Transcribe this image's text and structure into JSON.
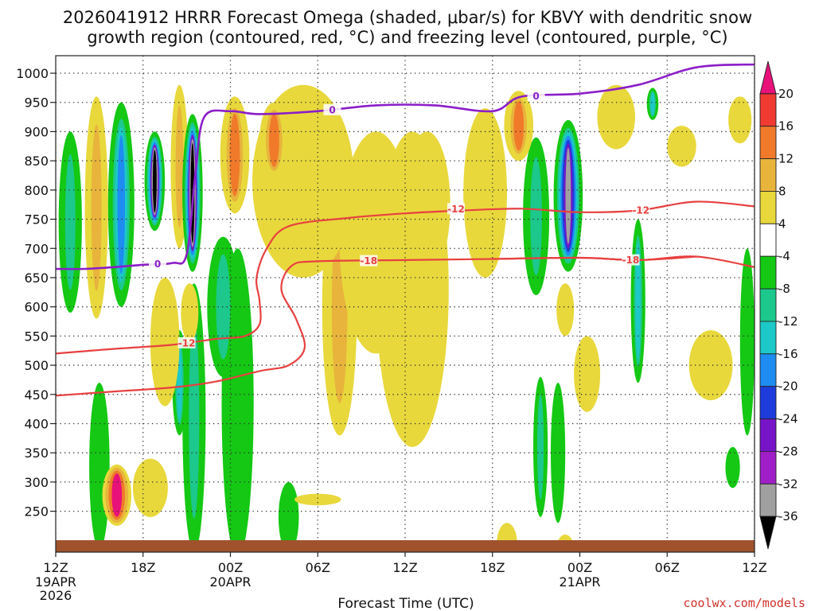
{
  "chart_data": {
    "type": "heatmap",
    "title_line1": "2026041912 HRRR Forecast Omega (shaded, μbar/s) for KBVY with dendritic snow",
    "title_line2": "growth region (contoured, red, °C) and freezing level (contoured, purple, °C)",
    "xlabel": "Forecast Time (UTC)",
    "credit": "coolwx.com/models",
    "y_axis": {
      "unit": "hPa",
      "range": [
        1030,
        180
      ],
      "ticks": [
        250,
        300,
        350,
        400,
        450,
        500,
        550,
        600,
        650,
        700,
        750,
        800,
        850,
        900,
        950,
        1000
      ],
      "tick_labels": [
        "250",
        "300",
        "350",
        "400",
        "450",
        "500",
        "550",
        "600",
        "650",
        "700",
        "750",
        "800",
        "850",
        "900",
        "950",
        "1000"
      ]
    },
    "x_axis": {
      "unit": "hours from 2026041912",
      "range": [
        0,
        48
      ],
      "ticks": [
        0,
        6,
        12,
        18,
        24,
        30,
        36,
        42,
        48
      ],
      "tick_labels": [
        "12Z",
        "18Z",
        "00Z",
        "06Z",
        "12Z",
        "18Z",
        "00Z",
        "06Z",
        "12Z"
      ],
      "date_labels": [
        {
          "hour": 0,
          "lines": [
            "19APR",
            "2026"
          ]
        },
        {
          "hour": 12,
          "lines": [
            "20APR"
          ]
        },
        {
          "hour": 36,
          "lines": [
            "21APR"
          ]
        }
      ]
    },
    "colorbar": {
      "tick_labels": [
        "20",
        "16",
        "12",
        "8",
        "4",
        "-4",
        "-8",
        "-12",
        "-16",
        "-20",
        "-24",
        "-28",
        "-32",
        "-36"
      ],
      "bins": [
        {
          "range": ">20",
          "color": "#e8117a"
        },
        {
          "range": "16..20",
          "color": "#f03a32"
        },
        {
          "range": "12..16",
          "color": "#f07a2a"
        },
        {
          "range": "8..12",
          "color": "#e8b43c"
        },
        {
          "range": "4..8",
          "color": "#e8d83c"
        },
        {
          "range": "-4..4",
          "color": "#ffffff"
        },
        {
          "range": "-8..-4",
          "color": "#14c814"
        },
        {
          "range": "-12..-8",
          "color": "#1cc88c"
        },
        {
          "range": "-16..-12",
          "color": "#1cc8c8"
        },
        {
          "range": "-20..-16",
          "color": "#1e8cf0"
        },
        {
          "range": "-24..-20",
          "color": "#1e3cdc"
        },
        {
          "range": "-28..-24",
          "color": "#7814c8"
        },
        {
          "range": "-32..-28",
          "color": "#a01ec8"
        },
        {
          "range": "-36..-32",
          "color": "#a0a0a0"
        },
        {
          "range": "<-36",
          "color": "#000000"
        }
      ]
    },
    "ground_color": "#a0522d",
    "omega_features": [
      {
        "hour": 3.0,
        "p_top": 185,
        "p_bot": 470,
        "hw": 0.7,
        "levels": [
          -4,
          -8
        ]
      },
      {
        "hour": 4.2,
        "p_top": 225,
        "p_bot": 330,
        "hw": 1.0,
        "levels": [
          8,
          12,
          16,
          22
        ]
      },
      {
        "hour": 6.5,
        "p_top": 240,
        "p_bot": 340,
        "hw": 1.2,
        "levels": [
          4
        ]
      },
      {
        "hour": 9.5,
        "p_top": 180,
        "p_bot": 640,
        "hw": 0.8,
        "levels": [
          -4,
          -8,
          -12
        ]
      },
      {
        "hour": 8.5,
        "p_top": 380,
        "p_bot": 560,
        "hw": 0.5,
        "levels": [
          -4,
          -8,
          -12,
          -16
        ]
      },
      {
        "hour": 7.5,
        "p_top": 430,
        "p_bot": 650,
        "hw": 1.0,
        "levels": [
          4,
          8
        ]
      },
      {
        "hour": 1.0,
        "p_top": 590,
        "p_bot": 900,
        "hw": 0.8,
        "levels": [
          -4,
          -8,
          -12
        ]
      },
      {
        "hour": 2.8,
        "p_top": 580,
        "p_bot": 960,
        "hw": 0.8,
        "levels": [
          4,
          8,
          12
        ]
      },
      {
        "hour": 4.5,
        "p_top": 600,
        "p_bot": 950,
        "hw": 0.9,
        "levels": [
          -4,
          -8,
          -12,
          -16,
          -20
        ]
      },
      {
        "hour": 6.8,
        "p_top": 730,
        "p_bot": 900,
        "hw": 0.7,
        "levels": [
          -4,
          -8,
          -12,
          -16,
          -20,
          -28,
          -33,
          -38
        ]
      },
      {
        "hour": 8.5,
        "p_top": 700,
        "p_bot": 980,
        "hw": 0.6,
        "levels": [
          4,
          8,
          12
        ]
      },
      {
        "hour": 9.4,
        "p_top": 660,
        "p_bot": 930,
        "hw": 0.7,
        "levels": [
          -4,
          -8,
          -12,
          -16,
          -20,
          -28,
          -33,
          -38
        ]
      },
      {
        "hour": 9.2,
        "p_top": 540,
        "p_bot": 640,
        "hw": 0.6,
        "levels": [
          4
        ]
      },
      {
        "hour": 12.5,
        "p_top": 170,
        "p_bot": 700,
        "hw": 1.1,
        "levels": [
          -4,
          -8
        ]
      },
      {
        "hour": 11.5,
        "p_top": 480,
        "p_bot": 720,
        "hw": 1.1,
        "levels": [
          -4,
          -8,
          -12
        ]
      },
      {
        "hour": 16.0,
        "p_top": 180,
        "p_bot": 300,
        "hw": 0.7,
        "levels": [
          -4,
          -8
        ]
      },
      {
        "hour": 18.0,
        "p_top": 260,
        "p_bot": 280,
        "hw": 1.6,
        "levels": [
          4
        ]
      },
      {
        "hour": 19.5,
        "p_top": 380,
        "p_bot": 820,
        "hw": 1.2,
        "levels": [
          4,
          8,
          12
        ]
      },
      {
        "hour": 24.5,
        "p_top": 360,
        "p_bot": 900,
        "hw": 2.5,
        "levels": [
          4
        ]
      },
      {
        "hour": 22.0,
        "p_top": 520,
        "p_bot": 900,
        "hw": 2.5,
        "levels": [
          4
        ]
      },
      {
        "hour": 17.0,
        "p_top": 650,
        "p_bot": 980,
        "hw": 3.5,
        "levels": [
          4,
          8
        ]
      },
      {
        "hour": 12.3,
        "p_top": 760,
        "p_bot": 960,
        "hw": 1.0,
        "levels": [
          4,
          8,
          12,
          16
        ]
      },
      {
        "hour": 15.0,
        "p_top": 820,
        "p_bot": 950,
        "hw": 1.0,
        "levels": [
          4,
          8,
          12,
          16
        ]
      },
      {
        "hour": 25.5,
        "p_top": 650,
        "p_bot": 900,
        "hw": 1.6,
        "levels": [
          4
        ]
      },
      {
        "hour": 29.5,
        "p_top": 650,
        "p_bot": 940,
        "hw": 1.5,
        "levels": [
          4
        ]
      },
      {
        "hour": 31.0,
        "p_top": 160,
        "p_bot": 230,
        "hw": 0.7,
        "levels": [
          4
        ]
      },
      {
        "hour": 35.0,
        "p_top": 160,
        "p_bot": 210,
        "hw": 0.6,
        "levels": [
          4
        ]
      },
      {
        "hour": 33.3,
        "p_top": 240,
        "p_bot": 480,
        "hw": 0.5,
        "levels": [
          -4,
          -8,
          -12
        ]
      },
      {
        "hour": 34.5,
        "p_top": 230,
        "p_bot": 470,
        "hw": 0.5,
        "levels": [
          -4,
          -8
        ]
      },
      {
        "hour": 36.5,
        "p_top": 420,
        "p_bot": 550,
        "hw": 0.9,
        "levels": [
          4,
          8
        ]
      },
      {
        "hour": 33.0,
        "p_top": 620,
        "p_bot": 890,
        "hw": 0.9,
        "levels": [
          -4,
          -8,
          -12
        ]
      },
      {
        "hour": 35.2,
        "p_top": 660,
        "p_bot": 920,
        "hw": 1.0,
        "levels": [
          -4,
          -8,
          -12,
          -16,
          -20,
          -24,
          -28,
          -33
        ]
      },
      {
        "hour": 35.0,
        "p_top": 550,
        "p_bot": 640,
        "hw": 0.6,
        "levels": [
          4,
          8
        ]
      },
      {
        "hour": 31.8,
        "p_top": 850,
        "p_bot": 970,
        "hw": 1.0,
        "levels": [
          4,
          8,
          12,
          16
        ]
      },
      {
        "hour": 38.5,
        "p_top": 870,
        "p_bot": 980,
        "hw": 1.3,
        "levels": [
          4,
          8
        ]
      },
      {
        "hour": 40.0,
        "p_top": 470,
        "p_bot": 750,
        "hw": 0.5,
        "levels": [
          -4,
          -8,
          -12,
          -16
        ]
      },
      {
        "hour": 41.0,
        "p_top": 920,
        "p_bot": 975,
        "hw": 0.4,
        "levels": [
          -4,
          -8,
          -12,
          -16
        ]
      },
      {
        "hour": 43.0,
        "p_top": 840,
        "p_bot": 910,
        "hw": 1.0,
        "levels": [
          4,
          8
        ]
      },
      {
        "hour": 45.0,
        "p_top": 440,
        "p_bot": 560,
        "hw": 1.5,
        "levels": [
          4
        ]
      },
      {
        "hour": 46.5,
        "p_top": 290,
        "p_bot": 360,
        "hw": 0.5,
        "levels": [
          -4,
          -8
        ]
      },
      {
        "hour": 47.5,
        "p_top": 380,
        "p_bot": 700,
        "hw": 0.5,
        "levels": [
          -4,
          -8
        ]
      },
      {
        "hour": 47.0,
        "p_top": 880,
        "p_bot": 960,
        "hw": 0.8,
        "levels": [
          4
        ]
      }
    ],
    "isotherms": [
      {
        "label": "-18",
        "color": "#e84040",
        "label_at_hour": 21.5,
        "x": [
          0,
          4,
          8,
          11,
          14,
          16,
          17.1,
          16.5,
          15.5,
          16.2,
          18,
          24,
          30,
          36,
          40,
          44,
          48
        ],
        "y": [
          448,
          455,
          462,
          472,
          490,
          500,
          530,
          580,
          630,
          670,
          678,
          680,
          682,
          684,
          680,
          686,
          668
        ]
      },
      {
        "label": "-12",
        "color": "#e84040",
        "label_at_hour": 9.0,
        "x": [
          0,
          4,
          8,
          11,
          13,
          14,
          14.0,
          13.8,
          14.5,
          16,
          20,
          24,
          28,
          32,
          36,
          40,
          44,
          48
        ],
        "y": [
          520,
          528,
          535,
          545,
          550,
          570,
          610,
          650,
          700,
          738,
          752,
          760,
          765,
          768,
          762,
          765,
          780,
          772
        ]
      },
      {
        "label": "-18",
        "color": "#e84040",
        "label_at_hour": 39.5,
        "x": [
          30,
          36,
          40,
          44
        ],
        "y": [
          682,
          684,
          680,
          686
        ]
      },
      {
        "label": "-12",
        "color": "#e84040",
        "label_at_hour": 27.5,
        "x": [
          28,
          32
        ],
        "y": [
          765,
          768
        ]
      },
      {
        "label": "-12",
        "color": "#e84040",
        "label_at_hour": 40.2,
        "x": [
          40,
          44
        ],
        "y": [
          765,
          780
        ]
      }
    ],
    "freezing_level": [
      {
        "label": "0",
        "color": "#8c1ec8",
        "label_at_hour": 7.0,
        "x": [
          0,
          2,
          4,
          6,
          8,
          9,
          9.6,
          10.2,
          12,
          14,
          18,
          22,
          26,
          30,
          32,
          36,
          40,
          44,
          48
        ],
        "y": [
          665,
          665,
          668,
          672,
          675,
          690,
          830,
          925,
          935,
          930,
          935,
          945,
          945,
          935,
          960,
          965,
          980,
          1010,
          1015
        ]
      },
      {
        "label": "0",
        "color": "#8c1ec8",
        "label_at_hour": 19.0,
        "x": [
          14,
          18,
          22
        ],
        "y": [
          930,
          935,
          945
        ]
      },
      {
        "label": "0",
        "color": "#8c1ec8",
        "label_at_hour": 33.0,
        "x": [
          32,
          36
        ],
        "y": [
          960,
          965
        ]
      }
    ]
  }
}
